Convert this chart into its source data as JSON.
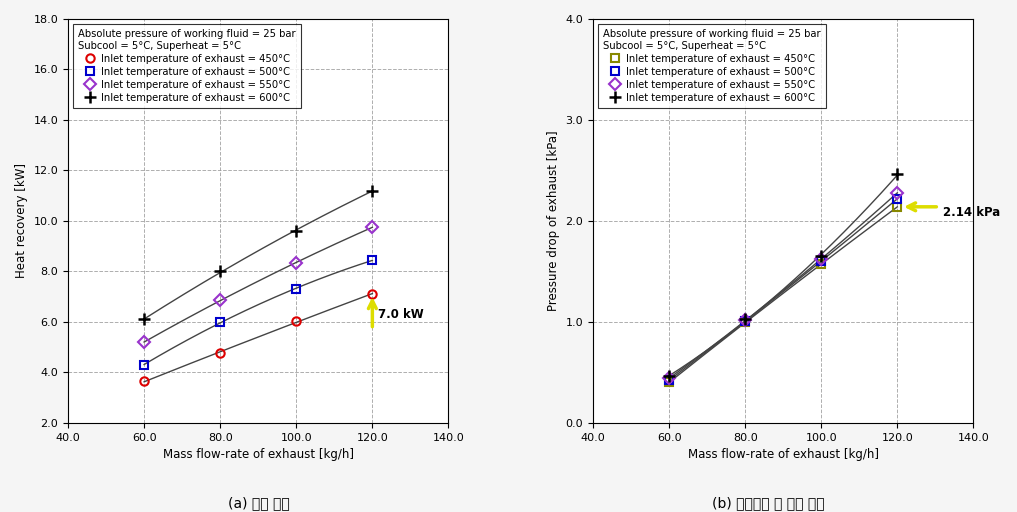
{
  "left_chart": {
    "xlabel": "Mass flow-rate of exhaust [kg/h]",
    "ylabel": "Heat recovery [kW]",
    "xlim": [
      40.0,
      140.0
    ],
    "ylim": [
      2.0,
      18.0
    ],
    "xticks": [
      40.0,
      60.0,
      80.0,
      100.0,
      120.0,
      140.0
    ],
    "yticks": [
      2.0,
      4.0,
      6.0,
      8.0,
      10.0,
      12.0,
      14.0,
      16.0,
      18.0
    ],
    "legend_line1": "Absolute pressure of working fluid = 25 bar",
    "legend_line2": "Subcool = 5°C, Superheat = 5°C",
    "series": [
      {
        "label": "Inlet temperature of exhaust = 450°C",
        "color": "#dd0000",
        "marker": "o",
        "markersize": 6,
        "mfc": "none",
        "mew": 1.5,
        "x": [
          60,
          80,
          100,
          120
        ],
        "y": [
          3.65,
          4.75,
          6.05,
          7.1
        ]
      },
      {
        "label": "Inlet temperature of exhaust = 500°C",
        "color": "#0000cc",
        "marker": "s",
        "markersize": 6,
        "mfc": "none",
        "mew": 1.5,
        "x": [
          60,
          80,
          100,
          120
        ],
        "y": [
          4.3,
          6.0,
          7.3,
          8.45
        ]
      },
      {
        "label": "Inlet temperature of exhaust = 550°C",
        "color": "#9933cc",
        "marker": "D",
        "markersize": 6,
        "mfc": "none",
        "mew": 1.5,
        "x": [
          60,
          80,
          100,
          120
        ],
        "y": [
          5.2,
          6.85,
          8.35,
          9.75
        ]
      },
      {
        "label": "Inlet temperature of exhaust = 600°C",
        "color": "#000000",
        "marker": "+",
        "markersize": 9,
        "mfc": "#000000",
        "mew": 1.8,
        "x": [
          60,
          80,
          100,
          120
        ],
        "y": [
          6.1,
          8.0,
          9.6,
          11.2
        ]
      }
    ],
    "caption": "(a) 회수 열량"
  },
  "right_chart": {
    "xlabel": "Mass flow-rate of exhaust [kg/h]",
    "ylabel": "Pressure drop of exhaust [kPa]",
    "xlim": [
      40.0,
      140.0
    ],
    "ylim": [
      0.0,
      4.0
    ],
    "xticks": [
      40.0,
      60.0,
      80.0,
      100.0,
      120.0,
      140.0
    ],
    "yticks": [
      0.0,
      1.0,
      2.0,
      3.0,
      4.0
    ],
    "legend_line1": "Absolute pressure of working fluid = 25 bar",
    "legend_line2": "Subcool = 5°C, Superheat = 5°C",
    "series": [
      {
        "label": "Inlet temperature of exhaust = 450°C",
        "color": "#888800",
        "marker": "s",
        "markersize": 6,
        "mfc": "none",
        "mew": 1.5,
        "x": [
          60,
          80,
          100,
          120
        ],
        "y": [
          0.4,
          0.995,
          1.57,
          2.14
        ]
      },
      {
        "label": "Inlet temperature of exhaust = 500°C",
        "color": "#0000cc",
        "marker": "s",
        "markersize": 6,
        "mfc": "none",
        "mew": 1.5,
        "x": [
          60,
          80,
          100,
          120
        ],
        "y": [
          0.42,
          1.005,
          1.6,
          2.22
        ]
      },
      {
        "label": "Inlet temperature of exhaust = 550°C",
        "color": "#9933cc",
        "marker": "D",
        "markersize": 6,
        "mfc": "none",
        "mew": 1.5,
        "x": [
          60,
          80,
          100,
          120
        ],
        "y": [
          0.44,
          1.015,
          1.62,
          2.28
        ]
      },
      {
        "label": "Inlet temperature of exhaust = 600°C",
        "color": "#000000",
        "marker": "+",
        "markersize": 9,
        "mfc": "#000000",
        "mew": 1.8,
        "x": [
          60,
          80,
          100,
          120
        ],
        "y": [
          0.46,
          1.025,
          1.65,
          2.46
        ]
      }
    ],
    "caption": "(b) 배기가스 측 압력 손실"
  },
  "fig_bg": "#f5f5f5",
  "plot_bg": "#ffffff",
  "grid_color": "#999999",
  "grid_style": "--",
  "grid_alpha": 0.8
}
